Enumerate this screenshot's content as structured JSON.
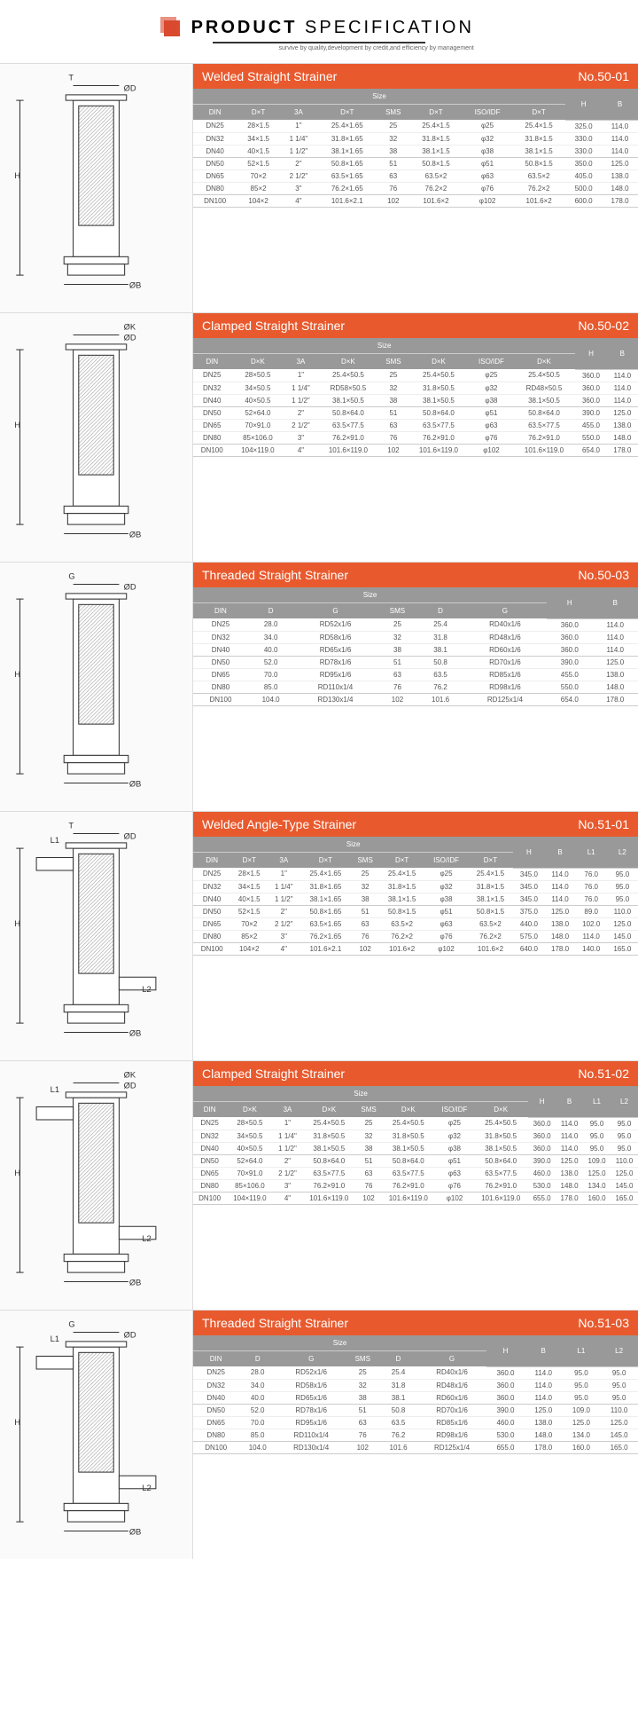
{
  "header": {
    "title_product": "PRODUCT",
    "title_spec": "SPECIFICATION",
    "subtitle": "survive by quality,development by credit,and efficiency by management"
  },
  "sections": [
    {
      "title": "Welded Straight Strainer",
      "number": "No.50-01",
      "size_span": 8,
      "extra_cols": [
        "H",
        "B"
      ],
      "cols": [
        "DIN",
        "D×T",
        "3A",
        "D×T",
        "SMS",
        "D×T",
        "ISO/IDF",
        "D×T"
      ],
      "rows": [
        [
          "DN25",
          "28×1.5",
          "1\"",
          "25.4×1.65",
          "25",
          "25.4×1.5",
          "φ25",
          "25.4×1.5",
          "325.0",
          "114.0"
        ],
        [
          "DN32",
          "34×1.5",
          "1 1/4\"",
          "31.8×1.65",
          "32",
          "31.8×1.5",
          "φ32",
          "31.8×1.5",
          "330.0",
          "114.0"
        ],
        [
          "DN40",
          "40×1.5",
          "1 1/2\"",
          "38.1×1.65",
          "38",
          "38.1×1.5",
          "φ38",
          "38.1×1.5",
          "330.0",
          "114.0"
        ],
        [
          "DN50",
          "52×1.5",
          "2\"",
          "50.8×1.65",
          "51",
          "50.8×1.5",
          "φ51",
          "50.8×1.5",
          "350.0",
          "125.0"
        ],
        [
          "DN65",
          "70×2",
          "2 1/2\"",
          "63.5×1.65",
          "63",
          "63.5×2",
          "φ63",
          "63.5×2",
          "405.0",
          "138.0"
        ],
        [
          "DN80",
          "85×2",
          "3\"",
          "76.2×1.65",
          "76",
          "76.2×2",
          "φ76",
          "76.2×2",
          "500.0",
          "148.0"
        ],
        [
          "DN100",
          "104×2",
          "4\"",
          "101.6×2.1",
          "102",
          "101.6×2",
          "φ102",
          "101.6×2",
          "600.0",
          "178.0"
        ]
      ],
      "diagram_labels": [
        "T",
        "ØD",
        "ØB",
        "H"
      ]
    },
    {
      "title": "Clamped Straight Strainer",
      "number": "No.50-02",
      "size_span": 8,
      "extra_cols": [
        "H",
        "B"
      ],
      "cols": [
        "DIN",
        "D×K",
        "3A",
        "D×K",
        "SMS",
        "D×K",
        "ISO/IDF",
        "D×K"
      ],
      "rows": [
        [
          "DN25",
          "28×50.5",
          "1\"",
          "25.4×50.5",
          "25",
          "25.4×50.5",
          "φ25",
          "25.4×50.5",
          "360.0",
          "114.0"
        ],
        [
          "DN32",
          "34×50.5",
          "1 1/4\"",
          "RD58×50.5",
          "32",
          "31.8×50.5",
          "φ32",
          "RD48×50.5",
          "360.0",
          "114.0"
        ],
        [
          "DN40",
          "40×50.5",
          "1 1/2\"",
          "38.1×50.5",
          "38",
          "38.1×50.5",
          "φ38",
          "38.1×50.5",
          "360.0",
          "114.0"
        ],
        [
          "DN50",
          "52×64.0",
          "2\"",
          "50.8×64.0",
          "51",
          "50.8×64.0",
          "φ51",
          "50.8×64.0",
          "390.0",
          "125.0"
        ],
        [
          "DN65",
          "70×91.0",
          "2 1/2\"",
          "63.5×77.5",
          "63",
          "63.5×77.5",
          "φ63",
          "63.5×77.5",
          "455.0",
          "138.0"
        ],
        [
          "DN80",
          "85×106.0",
          "3\"",
          "76.2×91.0",
          "76",
          "76.2×91.0",
          "φ76",
          "76.2×91.0",
          "550.0",
          "148.0"
        ],
        [
          "DN100",
          "104×119.0",
          "4\"",
          "101.6×119.0",
          "102",
          "101.6×119.0",
          "φ102",
          "101.6×119.0",
          "654.0",
          "178.0"
        ]
      ],
      "diagram_labels": [
        "ØK",
        "ØD",
        "ØB",
        "H"
      ]
    },
    {
      "title": "Threaded Straight Strainer",
      "number": "No.50-03",
      "size_span": 6,
      "extra_cols": [
        "H",
        "B"
      ],
      "cols": [
        "DIN",
        "D",
        "G",
        "SMS",
        "D",
        "G"
      ],
      "rows": [
        [
          "DN25",
          "28.0",
          "RD52x1/6",
          "25",
          "25.4",
          "RD40x1/6",
          "360.0",
          "114.0"
        ],
        [
          "DN32",
          "34.0",
          "RD58x1/6",
          "32",
          "31.8",
          "RD48x1/6",
          "360.0",
          "114.0"
        ],
        [
          "DN40",
          "40.0",
          "RD65x1/6",
          "38",
          "38.1",
          "RD60x1/6",
          "360.0",
          "114.0"
        ],
        [
          "DN50",
          "52.0",
          "RD78x1/6",
          "51",
          "50.8",
          "RD70x1/6",
          "390.0",
          "125.0"
        ],
        [
          "DN65",
          "70.0",
          "RD95x1/6",
          "63",
          "63.5",
          "RD85x1/6",
          "455.0",
          "138.0"
        ],
        [
          "DN80",
          "85.0",
          "RD110x1/4",
          "76",
          "76.2",
          "RD98x1/6",
          "550.0",
          "148.0"
        ],
        [
          "DN100",
          "104.0",
          "RD130x1/4",
          "102",
          "101.6",
          "RD125x1/4",
          "654.0",
          "178.0"
        ]
      ],
      "diagram_labels": [
        "G",
        "ØD",
        "ØB",
        "H"
      ]
    },
    {
      "title": "Welded Angle-Type Strainer",
      "number": "No.51-01",
      "size_span": 8,
      "extra_cols": [
        "H",
        "B",
        "L1",
        "L2"
      ],
      "cols": [
        "DIN",
        "D×T",
        "3A",
        "D×T",
        "SMS",
        "D×T",
        "ISO/IDF",
        "D×T"
      ],
      "rows": [
        [
          "DN25",
          "28×1.5",
          "1\"",
          "25.4×1.65",
          "25",
          "25.4×1.5",
          "φ25",
          "25.4×1.5",
          "345.0",
          "114.0",
          "76.0",
          "95.0"
        ],
        [
          "DN32",
          "34×1.5",
          "1 1/4\"",
          "31.8×1.65",
          "32",
          "31.8×1.5",
          "φ32",
          "31.8×1.5",
          "345.0",
          "114.0",
          "76.0",
          "95.0"
        ],
        [
          "DN40",
          "40×1.5",
          "1 1/2\"",
          "38.1×1.65",
          "38",
          "38.1×1.5",
          "φ38",
          "38.1×1.5",
          "345.0",
          "114.0",
          "76.0",
          "95.0"
        ],
        [
          "DN50",
          "52×1.5",
          "2\"",
          "50.8×1.65",
          "51",
          "50.8×1.5",
          "φ51",
          "50.8×1.5",
          "375.0",
          "125.0",
          "89.0",
          "110.0"
        ],
        [
          "DN65",
          "70×2",
          "2 1/2\"",
          "63.5×1.65",
          "63",
          "63.5×2",
          "φ63",
          "63.5×2",
          "440.0",
          "138.0",
          "102.0",
          "125.0"
        ],
        [
          "DN80",
          "85×2",
          "3\"",
          "76.2×1.65",
          "76",
          "76.2×2",
          "φ76",
          "76.2×2",
          "575.0",
          "148.0",
          "114.0",
          "145.0"
        ],
        [
          "DN100",
          "104×2",
          "4\"",
          "101.6×2.1",
          "102",
          "101.6×2",
          "φ102",
          "101.6×2",
          "640.0",
          "178.0",
          "140.0",
          "165.0"
        ]
      ],
      "diagram_labels": [
        "L1",
        "T",
        "ØD",
        "ØB",
        "H",
        "L2"
      ]
    },
    {
      "title": "Clamped Straight Strainer",
      "number": "No.51-02",
      "size_span": 8,
      "extra_cols": [
        "H",
        "B",
        "L1",
        "L2"
      ],
      "cols": [
        "DIN",
        "D×K",
        "3A",
        "D×K",
        "SMS",
        "D×K",
        "ISO/IDF",
        "D×K"
      ],
      "rows": [
        [
          "DN25",
          "28×50.5",
          "1\"",
          "25.4×50.5",
          "25",
          "25.4×50.5",
          "φ25",
          "25.4×50.5",
          "360.0",
          "114.0",
          "95.0",
          "95.0"
        ],
        [
          "DN32",
          "34×50.5",
          "1 1/4\"",
          "31.8×50.5",
          "32",
          "31.8×50.5",
          "φ32",
          "31.8×50.5",
          "360.0",
          "114.0",
          "95.0",
          "95.0"
        ],
        [
          "DN40",
          "40×50.5",
          "1 1/2\"",
          "38.1×50.5",
          "38",
          "38.1×50.5",
          "φ38",
          "38.1×50.5",
          "360.0",
          "114.0",
          "95.0",
          "95.0"
        ],
        [
          "DN50",
          "52×64.0",
          "2\"",
          "50.8×64.0",
          "51",
          "50.8×64.0",
          "φ51",
          "50.8×64.0",
          "390.0",
          "125.0",
          "109.0",
          "110.0"
        ],
        [
          "DN65",
          "70×91.0",
          "2 1/2\"",
          "63.5×77.5",
          "63",
          "63.5×77.5",
          "φ63",
          "63.5×77.5",
          "460.0",
          "138.0",
          "125.0",
          "125.0"
        ],
        [
          "DN80",
          "85×106.0",
          "3\"",
          "76.2×91.0",
          "76",
          "76.2×91.0",
          "φ76",
          "76.2×91.0",
          "530.0",
          "148.0",
          "134.0",
          "145.0"
        ],
        [
          "DN100",
          "104×119.0",
          "4\"",
          "101.6×119.0",
          "102",
          "101.6×119.0",
          "φ102",
          "101.6×119.0",
          "655.0",
          "178.0",
          "160.0",
          "165.0"
        ]
      ],
      "diagram_labels": [
        "L1",
        "ØK",
        "ØD",
        "ØB",
        "H",
        "L2"
      ]
    },
    {
      "title": "Threaded Straight Strainer",
      "number": "No.51-03",
      "size_span": 6,
      "extra_cols": [
        "H",
        "B",
        "L1",
        "L2"
      ],
      "cols": [
        "DIN",
        "D",
        "G",
        "SMS",
        "D",
        "G"
      ],
      "rows": [
        [
          "DN25",
          "28.0",
          "RD52x1/6",
          "25",
          "25.4",
          "RD40x1/6",
          "360.0",
          "114.0",
          "95.0",
          "95.0"
        ],
        [
          "DN32",
          "34.0",
          "RD58x1/6",
          "32",
          "31.8",
          "RD48x1/6",
          "360.0",
          "114.0",
          "95.0",
          "95.0"
        ],
        [
          "DN40",
          "40.0",
          "RD65x1/6",
          "38",
          "38.1",
          "RD60x1/6",
          "360.0",
          "114.0",
          "95.0",
          "95.0"
        ],
        [
          "DN50",
          "52.0",
          "RD78x1/6",
          "51",
          "50.8",
          "RD70x1/6",
          "390.0",
          "125.0",
          "109.0",
          "110.0"
        ],
        [
          "DN65",
          "70.0",
          "RD95x1/6",
          "63",
          "63.5",
          "RD85x1/6",
          "460.0",
          "138.0",
          "125.0",
          "125.0"
        ],
        [
          "DN80",
          "85.0",
          "RD110x1/4",
          "76",
          "76.2",
          "RD98x1/6",
          "530.0",
          "148.0",
          "134.0",
          "145.0"
        ],
        [
          "DN100",
          "104.0",
          "RD130x1/4",
          "102",
          "101.6",
          "RD125x1/4",
          "655.0",
          "178.0",
          "160.0",
          "165.0"
        ]
      ],
      "diagram_labels": [
        "G",
        "L1",
        "ØD",
        "ØB",
        "H",
        "L2"
      ]
    }
  ],
  "colors": {
    "title_bg": "#e85a2e",
    "thead_bg": "#999999",
    "border": "#dddddd",
    "row_border": "#eeeeee"
  },
  "size_label": "Size"
}
